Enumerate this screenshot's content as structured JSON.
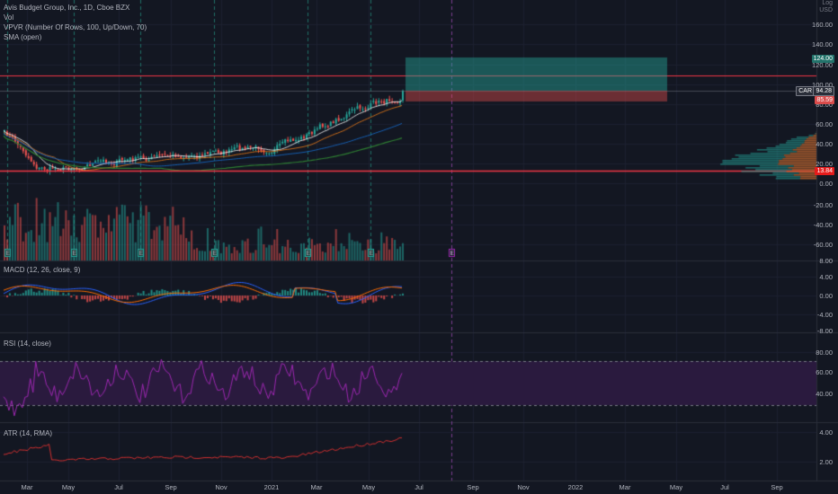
{
  "legend": {
    "title": "Avis Budget Group, Inc., 1D, Cboe BZX",
    "vol": "Vol",
    "vpvr": "VPVR (Number Of Rows, 100, Up/Down, 70)",
    "sma": "SMA (open)"
  },
  "indicators": {
    "macd": "MACD (12, 26, close, 9)",
    "rsi": "RSI (14, close)",
    "atr": "ATR (14, RMA)"
  },
  "currency": "USD",
  "scale_mode": "Log",
  "price_tags": {
    "target": "124.00",
    "car": "CAR",
    "last": "94.28",
    "stop": "85.59",
    "support": "13.84"
  },
  "colors": {
    "bg": "#131722",
    "grid": "#1c2030",
    "up": "#26a69a",
    "down": "#ef5350",
    "red_line": "#f23645",
    "rsi_band": "#2a1a3e",
    "rsi_line": "#9c27b0",
    "atr_line": "#d32f2f",
    "macd_line": "#2962ff",
    "signal_line": "#ff6d00"
  },
  "price_axis": [
    "160.00",
    "140.00",
    "120.00",
    "100.00",
    "80.00",
    "60.00",
    "40.00",
    "20.00",
    "0.00",
    "-20.00",
    "-40.00",
    "-60.00"
  ],
  "macd_axis": [
    "8.00",
    "4.00",
    "0.00",
    "-4.00",
    "-8.00"
  ],
  "rsi_axis": [
    "80.00",
    "60.00",
    "40.00"
  ],
  "atr_axis": [
    "4.00",
    "2.00"
  ],
  "time_axis": [
    "Mar",
    "May",
    "Jul",
    "Sep",
    "Nov",
    "2021",
    "Mar",
    "May",
    "Jul",
    "Sep",
    "Nov",
    "2022",
    "Mar",
    "May",
    "Jul",
    "Sep"
  ],
  "earnings_marker": "E"
}
